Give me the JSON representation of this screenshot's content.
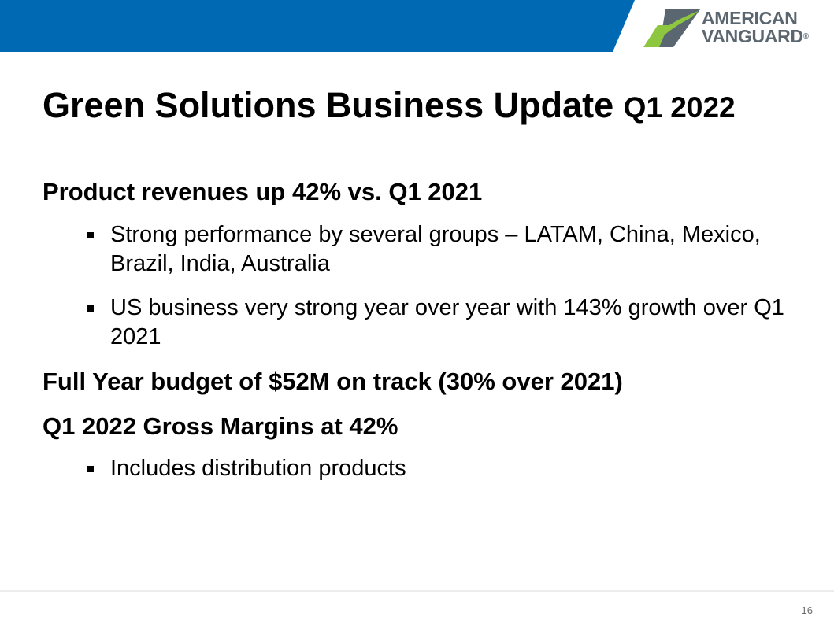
{
  "slide": {
    "title": "Green Solutions Business Update",
    "title_suffix": "Q1 2022",
    "page_number": "16"
  },
  "logo": {
    "line1": "AMERICAN",
    "line2": "VANGUARD",
    "reg_mark": "®"
  },
  "sections": {
    "revenues": {
      "heading": "Product revenues up 42% vs. Q1 2021",
      "bullets": [
        "Strong performance by several groups – LATAM, China, Mexico, Brazil, India, Australia",
        "US business very strong year over year with 143% growth over Q1 2021"
      ]
    },
    "budget": {
      "heading": "Full Year budget of $52M on track (30% over 2021)"
    },
    "margins": {
      "heading": "Q1 2022 Gross Margins at 42%",
      "bullets": [
        "Includes distribution products"
      ]
    }
  },
  "colors": {
    "band_blue": "#0069b4",
    "logo_green": "#8dc63f",
    "logo_gray": "#5b6770"
  }
}
